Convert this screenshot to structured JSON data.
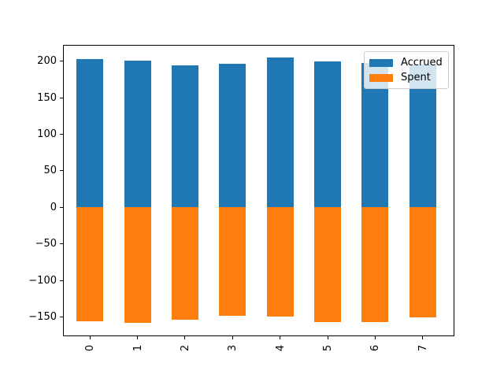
{
  "chart_data": {
    "type": "bar",
    "variant": "stacked-diverging",
    "title": "",
    "xlabel": "",
    "ylabel": "",
    "categories": [
      "0",
      "1",
      "2",
      "3",
      "4",
      "5",
      "6",
      "7"
    ],
    "series": [
      {
        "name": "Accrued",
        "color": "#1f77b4",
        "values": [
          203,
          201,
          195,
          197,
          205,
          200,
          198,
          196
        ]
      },
      {
        "name": "Spent",
        "color": "#ff7f0e",
        "values": [
          -156,
          -158,
          -154,
          -149,
          -150,
          -157,
          -157,
          -151
        ]
      }
    ],
    "ylim": [
      -175.5,
      221.5
    ],
    "yticks": [
      200,
      150,
      100,
      50,
      0,
      -50,
      -100,
      -150
    ],
    "ytick_labels": [
      "200",
      "150",
      "100",
      "50",
      "0",
      "−50",
      "−100",
      "−150"
    ],
    "xtick_rotation": 90,
    "grid": false,
    "legend": {
      "position": "upper right",
      "labels": [
        "Accrued",
        "Spent"
      ]
    },
    "colors": {
      "axes": "#000000",
      "background": "#ffffff",
      "legend_border": "#cccccc"
    }
  }
}
